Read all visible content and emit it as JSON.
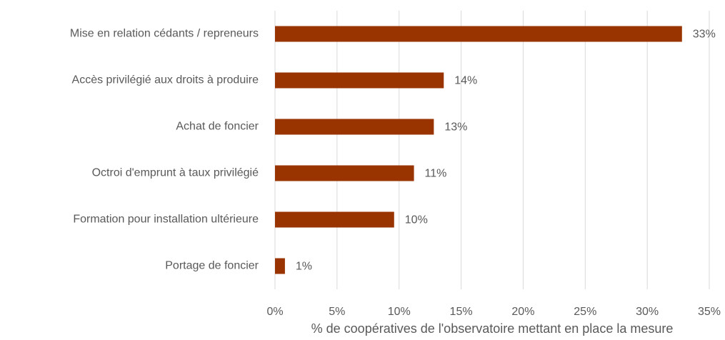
{
  "chart_data": {
    "type": "bar",
    "orientation": "horizontal",
    "categories": [
      "Mise en relation cédants / repreneurs",
      "Accès privilégié aux droits à produire",
      "Achat de foncier",
      "Octroi d'emprunt à taux privilégié",
      "Formation pour installation ultérieure",
      "Portage de foncier"
    ],
    "values": [
      32.8,
      13.6,
      12.8,
      11.2,
      9.6,
      0.8
    ],
    "value_labels": [
      "33%",
      "14%",
      "13%",
      "11%",
      "10%",
      "1%"
    ],
    "color": "#993300",
    "xlim": [
      0,
      35
    ],
    "xticks": [
      {
        "value": 0,
        "label": "0%"
      },
      {
        "value": 5,
        "label": "5%"
      },
      {
        "value": 10,
        "label": "10%"
      },
      {
        "value": 15,
        "label": "15%"
      },
      {
        "value": 20,
        "label": "20%"
      },
      {
        "value": 25,
        "label": "25%"
      },
      {
        "value": 30,
        "label": "30%"
      },
      {
        "value": 35,
        "label": "35%"
      }
    ],
    "x_label": "% de coopératives de l'observatoire mettant en place la mesure",
    "grid": true
  }
}
